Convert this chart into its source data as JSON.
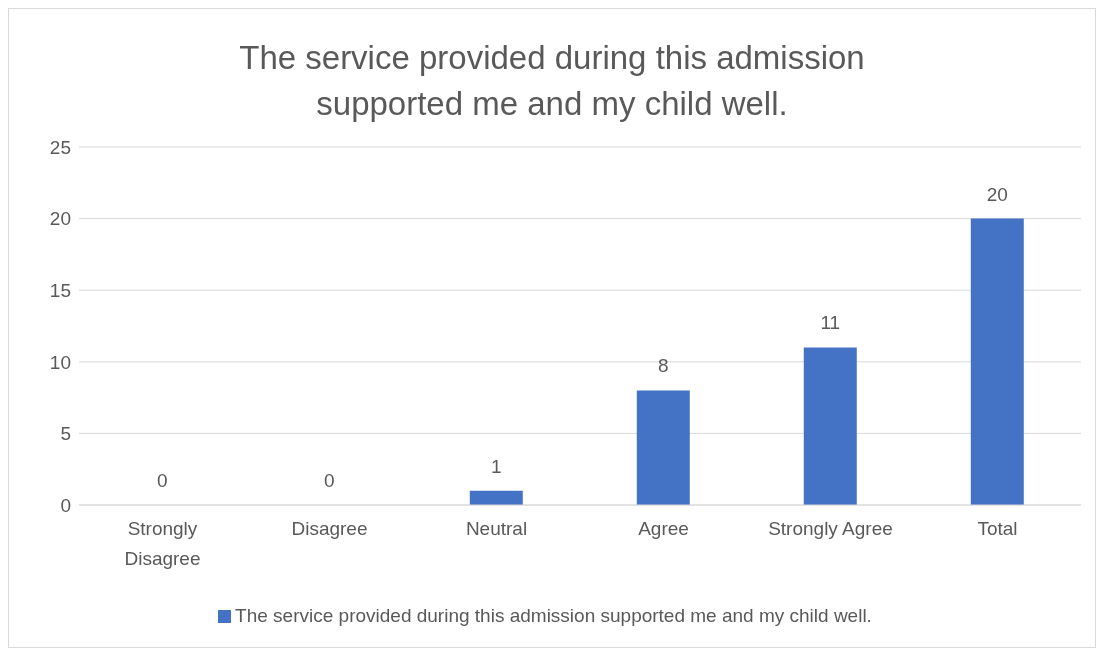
{
  "chart_data": {
    "type": "bar",
    "title": "The service provided during this admission supported me and my child well.",
    "categories": [
      "Strongly Disagree",
      "Disagree",
      "Neutral",
      "Agree",
      "Strongly Agree",
      "Total"
    ],
    "series": [
      {
        "name": "The service provided during this admission supported me and my child well.",
        "color": "#4472c4",
        "values": [
          0,
          0,
          1,
          8,
          11,
          20
        ]
      }
    ],
    "ylim": [
      0,
      25
    ],
    "yticks": [
      0,
      5,
      10,
      15,
      20,
      25
    ],
    "grid": "y",
    "data_labels": true,
    "legend": "bottom"
  }
}
